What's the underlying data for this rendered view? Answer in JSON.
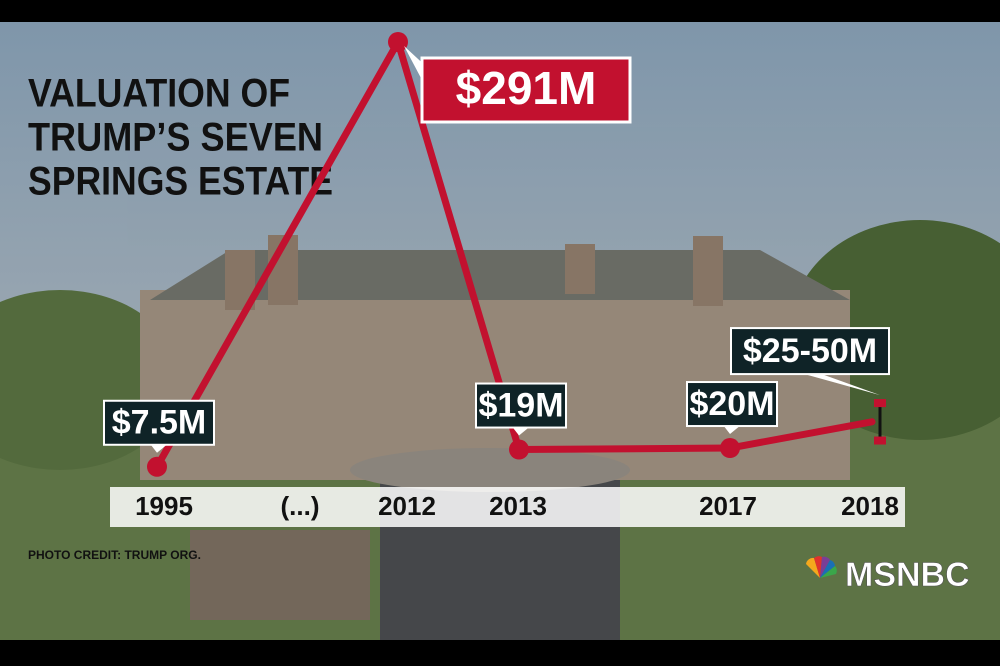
{
  "chart_data": {
    "type": "line",
    "title": [
      "VALUATION OF",
      "TRUMP’S SEVEN",
      "SPRINGS ESTATE"
    ],
    "categories": [
      "1995",
      "2012",
      "2013",
      "2017",
      "2018"
    ],
    "break_label": "(...)",
    "values": [
      7.5,
      291,
      19,
      20,
      null
    ],
    "value_labels": [
      "$7.5M",
      "$291M",
      "$19M",
      "$20M",
      null
    ],
    "range": [
      25,
      50
    ],
    "range_label": "$25-50M",
    "color": "#c2112f",
    "credit": "PHOTO CREDIT: TRUMP ORG.",
    "network": "MSNBC"
  }
}
